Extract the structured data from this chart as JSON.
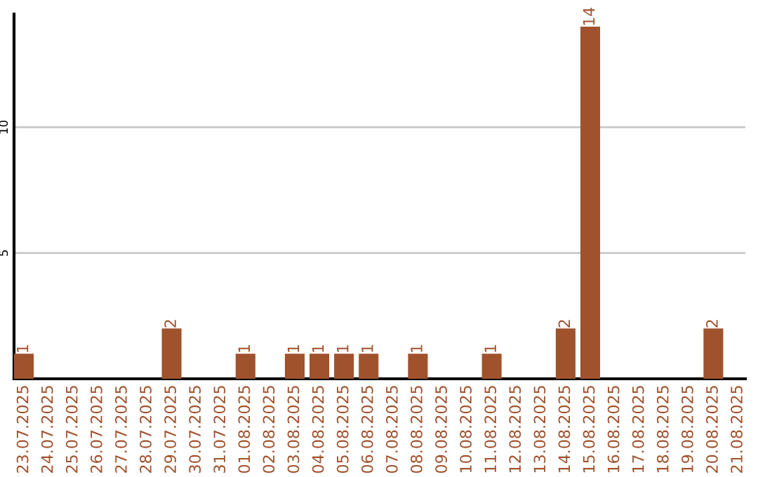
{
  "chart_data": {
    "type": "bar",
    "categories": [
      "23.07.2025",
      "24.07.2025",
      "25.07.2025",
      "26.07.2025",
      "27.07.2025",
      "28.07.2025",
      "29.07.2025",
      "30.07.2025",
      "31.07.2025",
      "01.08.2025",
      "02.08.2025",
      "03.08.2025",
      "04.08.2025",
      "05.08.2025",
      "06.08.2025",
      "07.08.2025",
      "08.08.2025",
      "09.08.2025",
      "10.08.2025",
      "11.08.2025",
      "12.08.2025",
      "13.08.2025",
      "14.08.2025",
      "15.08.2025",
      "16.08.2025",
      "17.08.2025",
      "18.08.2025",
      "19.08.2025",
      "20.08.2025",
      "21.08.2025"
    ],
    "values": [
      1,
      0,
      0,
      0,
      0,
      0,
      2,
      0,
      0,
      1,
      0,
      1,
      1,
      1,
      1,
      0,
      1,
      0,
      0,
      1,
      0,
      0,
      2,
      14,
      0,
      0,
      0,
      0,
      2,
      0
    ],
    "value_labels": [
      "1",
      null,
      null,
      null,
      null,
      null,
      "2",
      null,
      null,
      "1",
      null,
      "1",
      "1",
      "1",
      "1",
      null,
      "1",
      null,
      null,
      "1",
      null,
      null,
      "2",
      "14",
      null,
      null,
      null,
      null,
      "2",
      null
    ],
    "color": "#a0522d",
    "ylim": [
      0,
      14.5
    ],
    "yticks": [
      5,
      10
    ],
    "grid": "y",
    "legend": false
  }
}
